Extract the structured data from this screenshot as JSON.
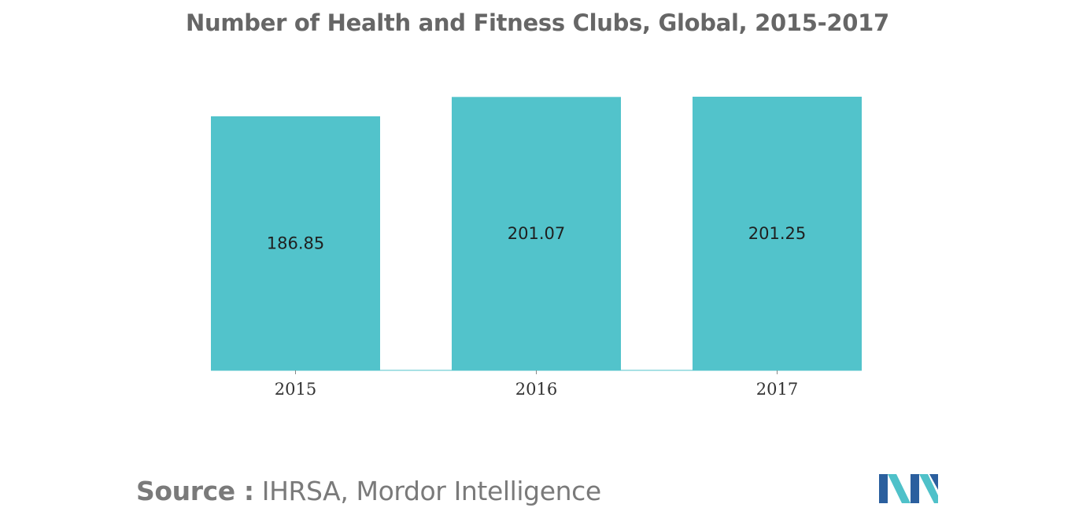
{
  "chart_data": {
    "type": "bar",
    "title": "Number of Health and Fitness Clubs, Global, 2015-2017",
    "categories": [
      "2015",
      "2016",
      "2017"
    ],
    "values": [
      186.85,
      201.07,
      201.25
    ],
    "data_labels": [
      "186.85",
      "201.07",
      "201.25"
    ],
    "xlabel": "",
    "ylabel": "",
    "ylim": [
      0,
      201.25
    ],
    "grid": false,
    "legend": "none",
    "bar_color": "#52c3cb"
  },
  "source": {
    "prefix": "Source :",
    "text": "IHRSA, Mordor Intelligence"
  },
  "logo": {
    "icon": "mordor-intelligence-logo-icon",
    "colors": [
      "#2b5f9e",
      "#4fc1c9"
    ]
  }
}
